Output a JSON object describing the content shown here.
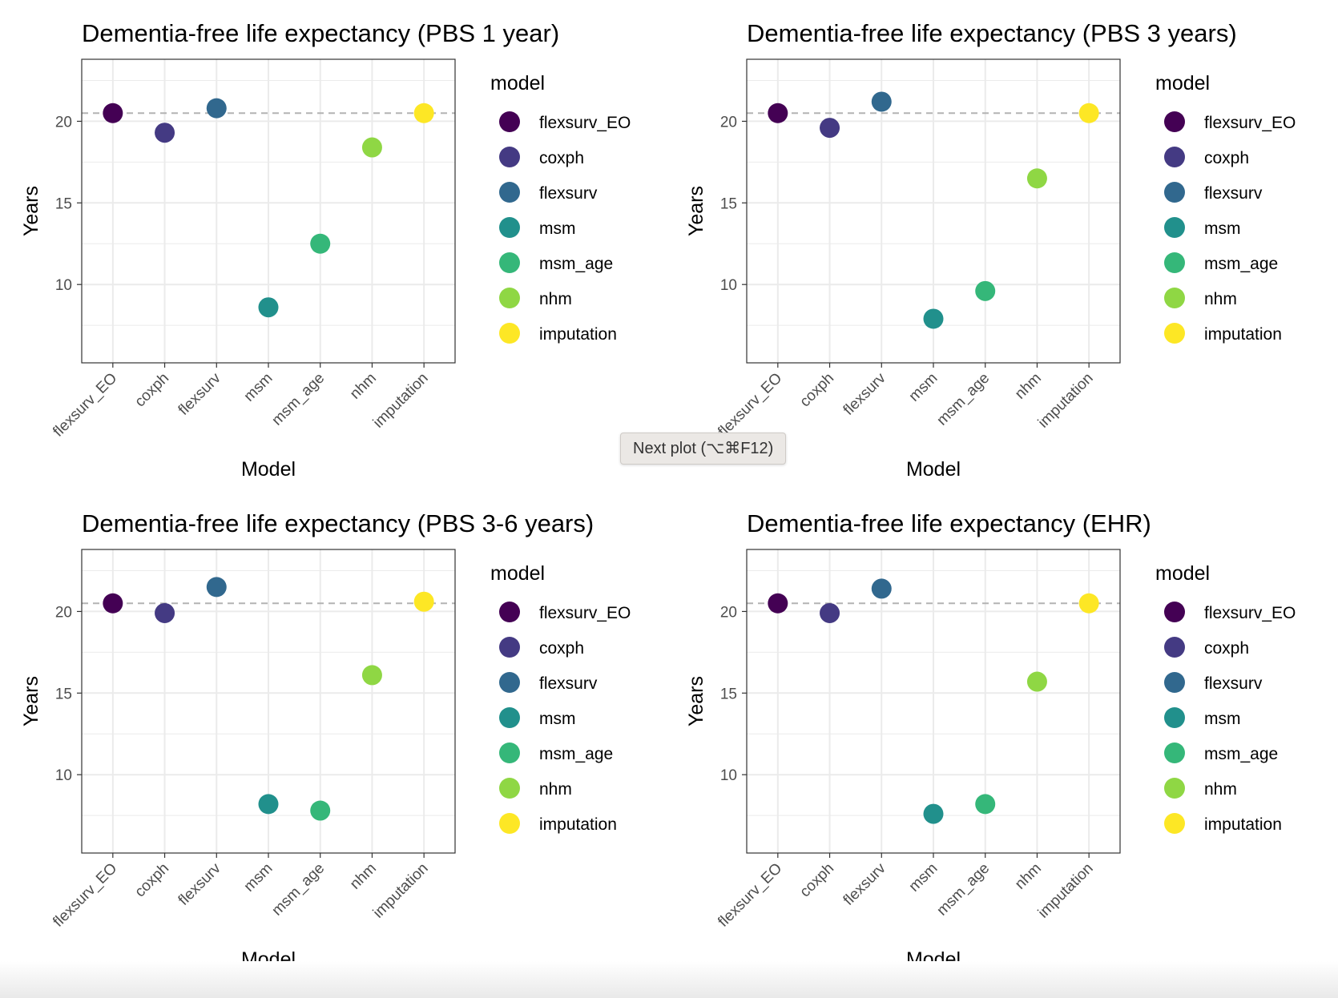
{
  "tooltip": {
    "text": "Next plot (⌥⌘F12)"
  },
  "colors": {
    "flexsurv_EO": "#440154",
    "coxph": "#443A83",
    "flexsurv": "#31688E",
    "msm": "#21908C",
    "msm_age": "#35B779",
    "nhm": "#8FD744",
    "imputation": "#FDE725",
    "reference_line": "#b3b3b3",
    "grid": "#ebebeb",
    "panel_border": "#333333"
  },
  "chart_data": [
    {
      "type": "scatter",
      "title": "Dementia-free life expectancy (PBS 1 year)",
      "xlabel": "Model",
      "ylabel": "Years",
      "categories": [
        "flexsurv_EO",
        "coxph",
        "flexsurv",
        "msm",
        "msm_age",
        "nhm",
        "imputation"
      ],
      "values": [
        20.5,
        19.3,
        20.8,
        8.6,
        12.5,
        18.4,
        20.5
      ],
      "reference_line": 20.5,
      "yticks": [
        10,
        15,
        20
      ],
      "ylim": [
        5.2,
        23.8
      ],
      "grid": true,
      "legend": {
        "title": "model",
        "position": "right",
        "entries": [
          "flexsurv_EO",
          "coxph",
          "flexsurv",
          "msm",
          "msm_age",
          "nhm",
          "imputation"
        ]
      }
    },
    {
      "type": "scatter",
      "title": "Dementia-free life expectancy (PBS 3 years)",
      "xlabel": "Model",
      "ylabel": "Years",
      "categories": [
        "flexsurv_EO",
        "coxph",
        "flexsurv",
        "msm",
        "msm_age",
        "nhm",
        "imputation"
      ],
      "values": [
        20.5,
        19.6,
        21.2,
        7.9,
        9.6,
        16.5,
        20.5
      ],
      "reference_line": 20.5,
      "yticks": [
        10,
        15,
        20
      ],
      "ylim": [
        5.2,
        23.8
      ],
      "grid": true,
      "legend": {
        "title": "model",
        "position": "right",
        "entries": [
          "flexsurv_EO",
          "coxph",
          "flexsurv",
          "msm",
          "msm_age",
          "nhm",
          "imputation"
        ]
      }
    },
    {
      "type": "scatter",
      "title": "Dementia-free life expectancy (PBS 3-6 years)",
      "xlabel": "Model",
      "ylabel": "Years",
      "categories": [
        "flexsurv_EO",
        "coxph",
        "flexsurv",
        "msm",
        "msm_age",
        "nhm",
        "imputation"
      ],
      "values": [
        20.5,
        19.9,
        21.5,
        8.2,
        7.8,
        16.1,
        20.6
      ],
      "reference_line": 20.5,
      "yticks": [
        10,
        15,
        20
      ],
      "ylim": [
        5.2,
        23.8
      ],
      "grid": true,
      "legend": {
        "title": "model",
        "position": "right",
        "entries": [
          "flexsurv_EO",
          "coxph",
          "flexsurv",
          "msm",
          "msm_age",
          "nhm",
          "imputation"
        ]
      }
    },
    {
      "type": "scatter",
      "title": "Dementia-free life expectancy (EHR)",
      "xlabel": "Model",
      "ylabel": "Years",
      "categories": [
        "flexsurv_EO",
        "coxph",
        "flexsurv",
        "msm",
        "msm_age",
        "nhm",
        "imputation"
      ],
      "values": [
        20.5,
        19.9,
        21.4,
        7.6,
        8.2,
        15.7,
        20.5
      ],
      "reference_line": 20.5,
      "yticks": [
        10,
        15,
        20
      ],
      "ylim": [
        5.2,
        23.8
      ],
      "grid": true,
      "legend": {
        "title": "model",
        "position": "right",
        "entries": [
          "flexsurv_EO",
          "coxph",
          "flexsurv",
          "msm",
          "msm_age",
          "nhm",
          "imputation"
        ]
      }
    }
  ]
}
